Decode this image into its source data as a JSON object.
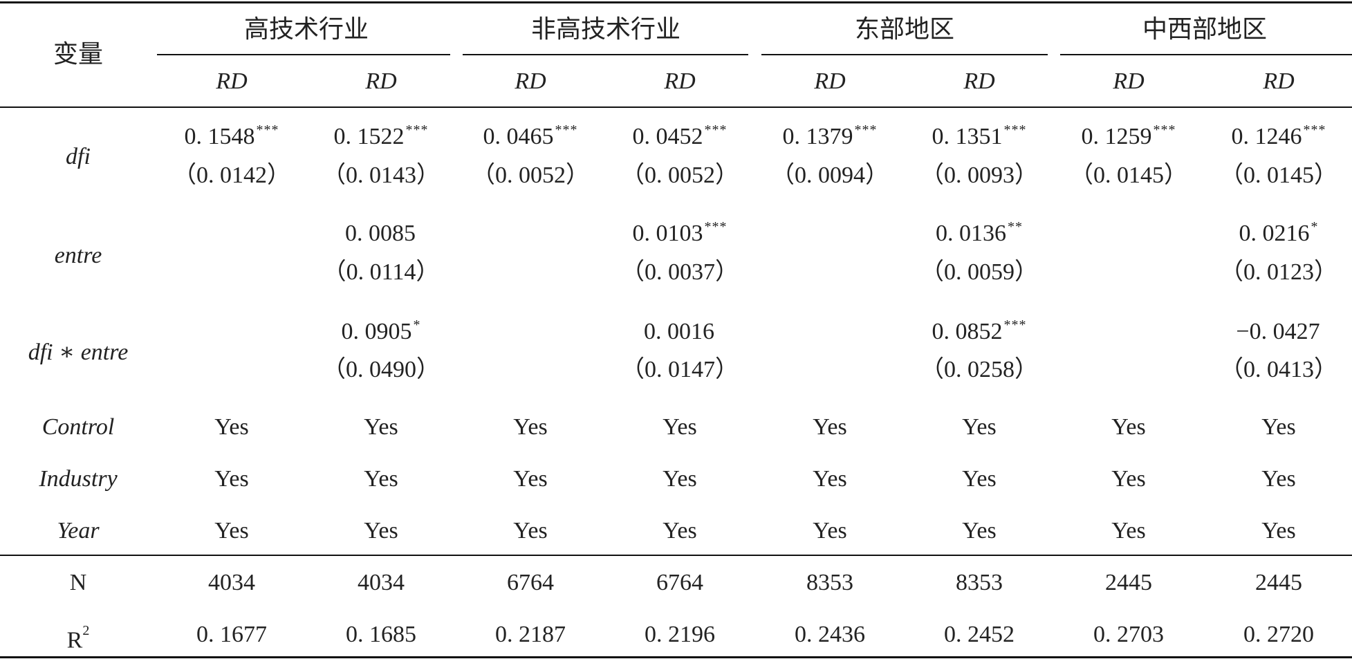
{
  "header": {
    "variable_label": "变量",
    "groups": [
      "高技术行业",
      "非高技术行业",
      "东部地区",
      "中西部地区"
    ],
    "dep_var": [
      "RD",
      "RD",
      "RD",
      "RD",
      "RD",
      "RD",
      "RD",
      "RD"
    ]
  },
  "rows": {
    "dfi": {
      "label": "dfi",
      "coef": [
        "0. 1548",
        "0. 1522",
        "0. 0465",
        "0. 0452",
        "0. 1379",
        "0. 1351",
        "0. 1259",
        "0. 1246"
      ],
      "stars": [
        "***",
        "***",
        "***",
        "***",
        "***",
        "***",
        "***",
        "***"
      ],
      "se": [
        "（0. 0142）",
        "（0. 0143）",
        "（0. 0052）",
        "（0. 0052）",
        "（0. 0094）",
        "（0. 0093）",
        "（0. 0145）",
        "（0. 0145）"
      ]
    },
    "entre": {
      "label": "entre",
      "coef": [
        "",
        "0. 0085",
        "",
        "0. 0103",
        "",
        "0. 0136",
        "",
        "0. 0216"
      ],
      "stars": [
        "",
        "",
        "",
        "***",
        "",
        "**",
        "",
        "*"
      ],
      "se": [
        "",
        "（0. 0114）",
        "",
        "（0. 0037）",
        "",
        "（0. 0059）",
        "",
        "（0. 0123）"
      ]
    },
    "interaction": {
      "label": "dfi ∗ entre",
      "coef": [
        "",
        "0. 0905",
        "",
        "0. 0016",
        "",
        "0. 0852",
        "",
        "−0. 0427"
      ],
      "stars": [
        "",
        "*",
        "",
        "",
        "",
        "***",
        "",
        ""
      ],
      "se": [
        "",
        "（0. 0490）",
        "",
        "（0. 0147）",
        "",
        "（0. 0258）",
        "",
        "（0. 0413）"
      ]
    },
    "control": {
      "label": "Control",
      "values": [
        "Yes",
        "Yes",
        "Yes",
        "Yes",
        "Yes",
        "Yes",
        "Yes",
        "Yes"
      ]
    },
    "industry": {
      "label": "Industry",
      "values": [
        "Yes",
        "Yes",
        "Yes",
        "Yes",
        "Yes",
        "Yes",
        "Yes",
        "Yes"
      ]
    },
    "year": {
      "label": "Year",
      "values": [
        "Yes",
        "Yes",
        "Yes",
        "Yes",
        "Yes",
        "Yes",
        "Yes",
        "Yes"
      ]
    },
    "n": {
      "label": "N",
      "values": [
        "4034",
        "4034",
        "6764",
        "6764",
        "8353",
        "8353",
        "2445",
        "2445"
      ]
    },
    "r2": {
      "label": "R",
      "label_sup": "2",
      "values": [
        "0. 1677",
        "0. 1685",
        "0. 2187",
        "0. 2196",
        "0. 2436",
        "0. 2452",
        "0. 2703",
        "0. 2720"
      ]
    }
  }
}
